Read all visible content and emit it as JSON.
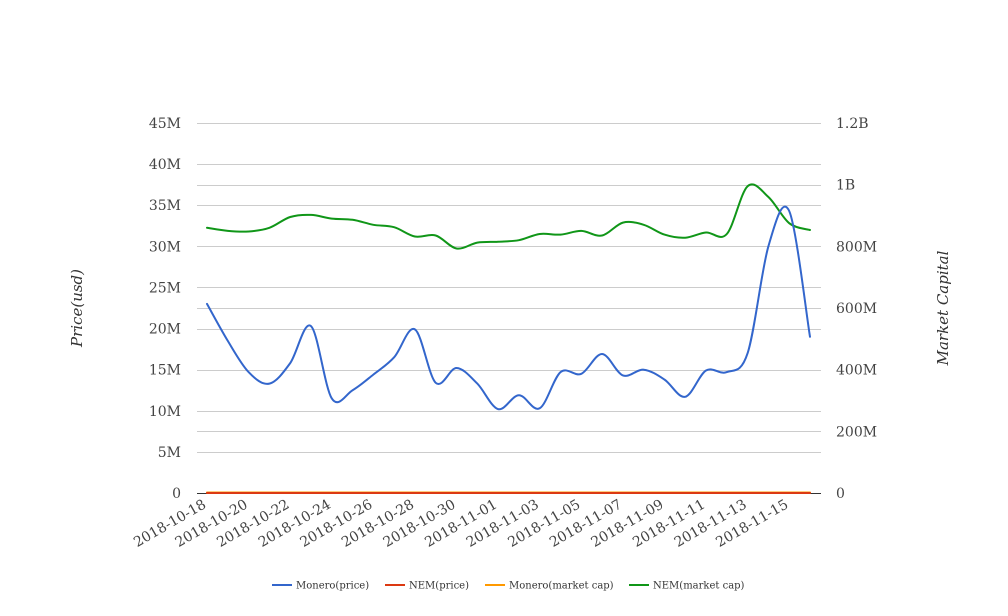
{
  "chart_data": {
    "type": "line",
    "title": "",
    "ylabel": "Price(usd)",
    "y2label": "Market Capital",
    "ylim": [
      0,
      45000000
    ],
    "y2lim": [
      0,
      1200000000
    ],
    "y_ticks": [
      0,
      5000000,
      10000000,
      15000000,
      20000000,
      25000000,
      30000000,
      35000000,
      40000000,
      45000000
    ],
    "y_tick_labels": [
      "0",
      "5M",
      "10M",
      "15M",
      "20M",
      "25M",
      "30M",
      "35M",
      "40M",
      "45M"
    ],
    "y2_ticks": [
      0,
      200000000,
      400000000,
      600000000,
      800000000,
      1000000000,
      1200000000
    ],
    "y2_tick_labels": [
      "0",
      "200M",
      "400M",
      "600M",
      "800M",
      "1B",
      "1.2B"
    ],
    "x": [
      "2018-10-18",
      "2018-10-19",
      "2018-10-20",
      "2018-10-21",
      "2018-10-22",
      "2018-10-23",
      "2018-10-24",
      "2018-10-25",
      "2018-10-26",
      "2018-10-27",
      "2018-10-28",
      "2018-10-29",
      "2018-10-30",
      "2018-10-31",
      "2018-11-01",
      "2018-11-02",
      "2018-11-03",
      "2018-11-04",
      "2018-11-05",
      "2018-11-06",
      "2018-11-07",
      "2018-11-08",
      "2018-11-09",
      "2018-11-10",
      "2018-11-11",
      "2018-11-12",
      "2018-11-13",
      "2018-11-14",
      "2018-11-15",
      "2018-11-16"
    ],
    "x_tick_labels": [
      "2018-10-18",
      "2018-10-20",
      "2018-10-22",
      "2018-10-24",
      "2018-10-26",
      "2018-10-28",
      "2018-10-30",
      "2018-11-01",
      "2018-11-03",
      "2018-11-05",
      "2018-11-07",
      "2018-11-09",
      "2018-11-11",
      "2018-11-13",
      "2018-11-15"
    ],
    "grid": true,
    "legend_position": "bottom",
    "series": [
      {
        "name": "Monero(price)",
        "axis": "left",
        "color": "#3366cc",
        "values": [
          23000000,
          18500000,
          14700000,
          13300000,
          15800000,
          20300000,
          11500000,
          12500000,
          14400000,
          16500000,
          19900000,
          13400000,
          15200000,
          13300000,
          10200000,
          11900000,
          10300000,
          14700000,
          14500000,
          16900000,
          14300000,
          15000000,
          13800000,
          11700000,
          14900000,
          14700000,
          17000000,
          30000000,
          34300000,
          19000000
        ]
      },
      {
        "name": "NEM(price)",
        "axis": "left",
        "color": "#dc3912",
        "values": [
          0.0085,
          0.0084,
          0.0083,
          0.0082,
          0.0084,
          0.0083,
          0.0082,
          0.0082,
          0.0081,
          0.008,
          0.008,
          0.0078,
          0.0077,
          0.0078,
          0.0078,
          0.0079,
          0.008,
          0.008,
          0.0079,
          0.0082,
          0.0081,
          0.008,
          0.008,
          0.0081,
          0.008,
          0.0094,
          0.0092,
          0.0086,
          0.0085,
          0.0084
        ]
      },
      {
        "name": "Monero(market cap)",
        "axis": "right",
        "color": "#ff9900",
        "values": [
          1750000,
          1740000,
          1730000,
          1720000,
          1730000,
          1740000,
          1720000,
          1700000,
          1700000,
          1690000,
          1690000,
          1680000,
          1670000,
          1680000,
          1680000,
          1690000,
          1690000,
          1700000,
          1690000,
          1710000,
          1700000,
          1700000,
          1690000,
          1690000,
          1700000,
          1780000,
          1760000,
          1730000,
          1720000,
          1710000
        ]
      },
      {
        "name": "NEM(market cap)",
        "axis": "right",
        "color": "#109618",
        "values": [
          860000000,
          850000000,
          848000000,
          860000000,
          895000000,
          902000000,
          890000000,
          886000000,
          870000000,
          862000000,
          832000000,
          835000000,
          793000000,
          812000000,
          815000000,
          820000000,
          840000000,
          838000000,
          850000000,
          835000000,
          877000000,
          870000000,
          838000000,
          828000000,
          845000000,
          840000000,
          995000000,
          960000000,
          875000000,
          853000000
        ]
      }
    ]
  }
}
